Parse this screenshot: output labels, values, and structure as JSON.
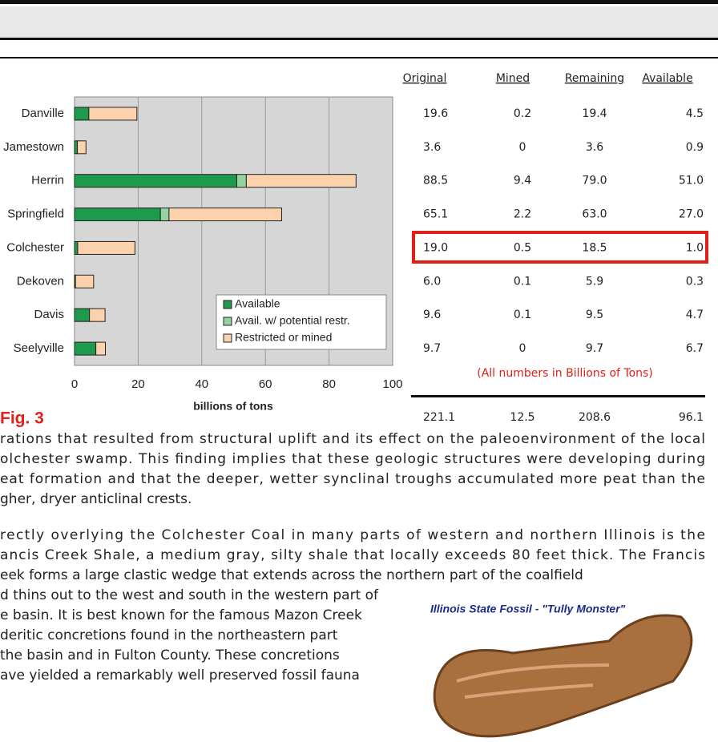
{
  "chart_data": {
    "type": "bar",
    "horizontal": true,
    "stacked": true,
    "categories": [
      "Danville",
      "Jamestown",
      "Herrin",
      "Springfield",
      "Colchester",
      "Dekoven",
      "Davis",
      "Seelyville"
    ],
    "series": [
      {
        "name": "Available",
        "color": "#1e9a4c",
        "values": [
          4.5,
          0.9,
          51.0,
          27.0,
          1.0,
          0.3,
          4.7,
          6.7
        ]
      },
      {
        "name": "Avail. w/ potential restr.",
        "color": "#93d3a2",
        "values": [
          0,
          0,
          3.0,
          2.7,
          0,
          0,
          0,
          0
        ]
      },
      {
        "name": "Restricted or mined",
        "color": "#fcd2ad",
        "values": [
          15.1,
          2.7,
          34.5,
          35.4,
          18.0,
          5.7,
          4.9,
          3.0
        ]
      }
    ],
    "xlim": [
      0,
      100
    ],
    "xticks": [
      0,
      20,
      40,
      60,
      80,
      100
    ],
    "xlabel": "billions of tons",
    "grid": true,
    "legend": "lower right"
  },
  "figure_label": "Fig. 3",
  "table": {
    "columns": [
      "Original",
      "Mined",
      "Remaining",
      "Available"
    ],
    "rows": [
      [
        "19.6",
        "0.2",
        "19.4",
        "4.5"
      ],
      [
        "3.6",
        "0",
        "3.6",
        "0.9"
      ],
      [
        "88.5",
        "9.4",
        "79.0",
        "51.0"
      ],
      [
        "65.1",
        "2.2",
        "63.0",
        "27.0"
      ],
      [
        "19.0",
        "0.5",
        "18.5",
        "1.0"
      ],
      [
        "6.0",
        "0.1",
        "5.9",
        "0.3"
      ],
      [
        "9.6",
        "0.1",
        "9.5",
        "4.7"
      ],
      [
        "9.7",
        "0",
        "9.7",
        "6.7"
      ]
    ],
    "highlighted_row": 4,
    "note": "(All numbers in Billions of Tons)",
    "totals": [
      "221.1",
      "12.5",
      "208.6",
      "96.1"
    ]
  },
  "paragraphs": [
    [
      "rations that resulted from structural uplift and its effect on the paleoenvironment of the local",
      "olchester swamp. This finding implies that these geologic structures were developing during",
      "eat formation and that the deeper, wetter synclinal troughs accumulated more peat than the",
      "gher, dryer anticlinal crests."
    ],
    [
      "rectly overlying the Colchester Coal in many parts of western and northern Illinois is the",
      "ancis Creek Shale, a medium gray, silty shale that locally exceeds 80 feet thick. The Francis",
      "eek forms a large clastic wedge that extends across the northern part of the coalfield",
      "d thins out to the west and south in the western part of",
      "e basin. It is best known for the famous Mazon Creek",
      "deritic concretions found in the northeastern part",
      "the basin and in Fulton County. These concretions",
      "ave yielded a remarkably well preserved fossil fauna"
    ]
  ],
  "fossil_caption": "Illinois State Fossil - \"Tully Monster\""
}
